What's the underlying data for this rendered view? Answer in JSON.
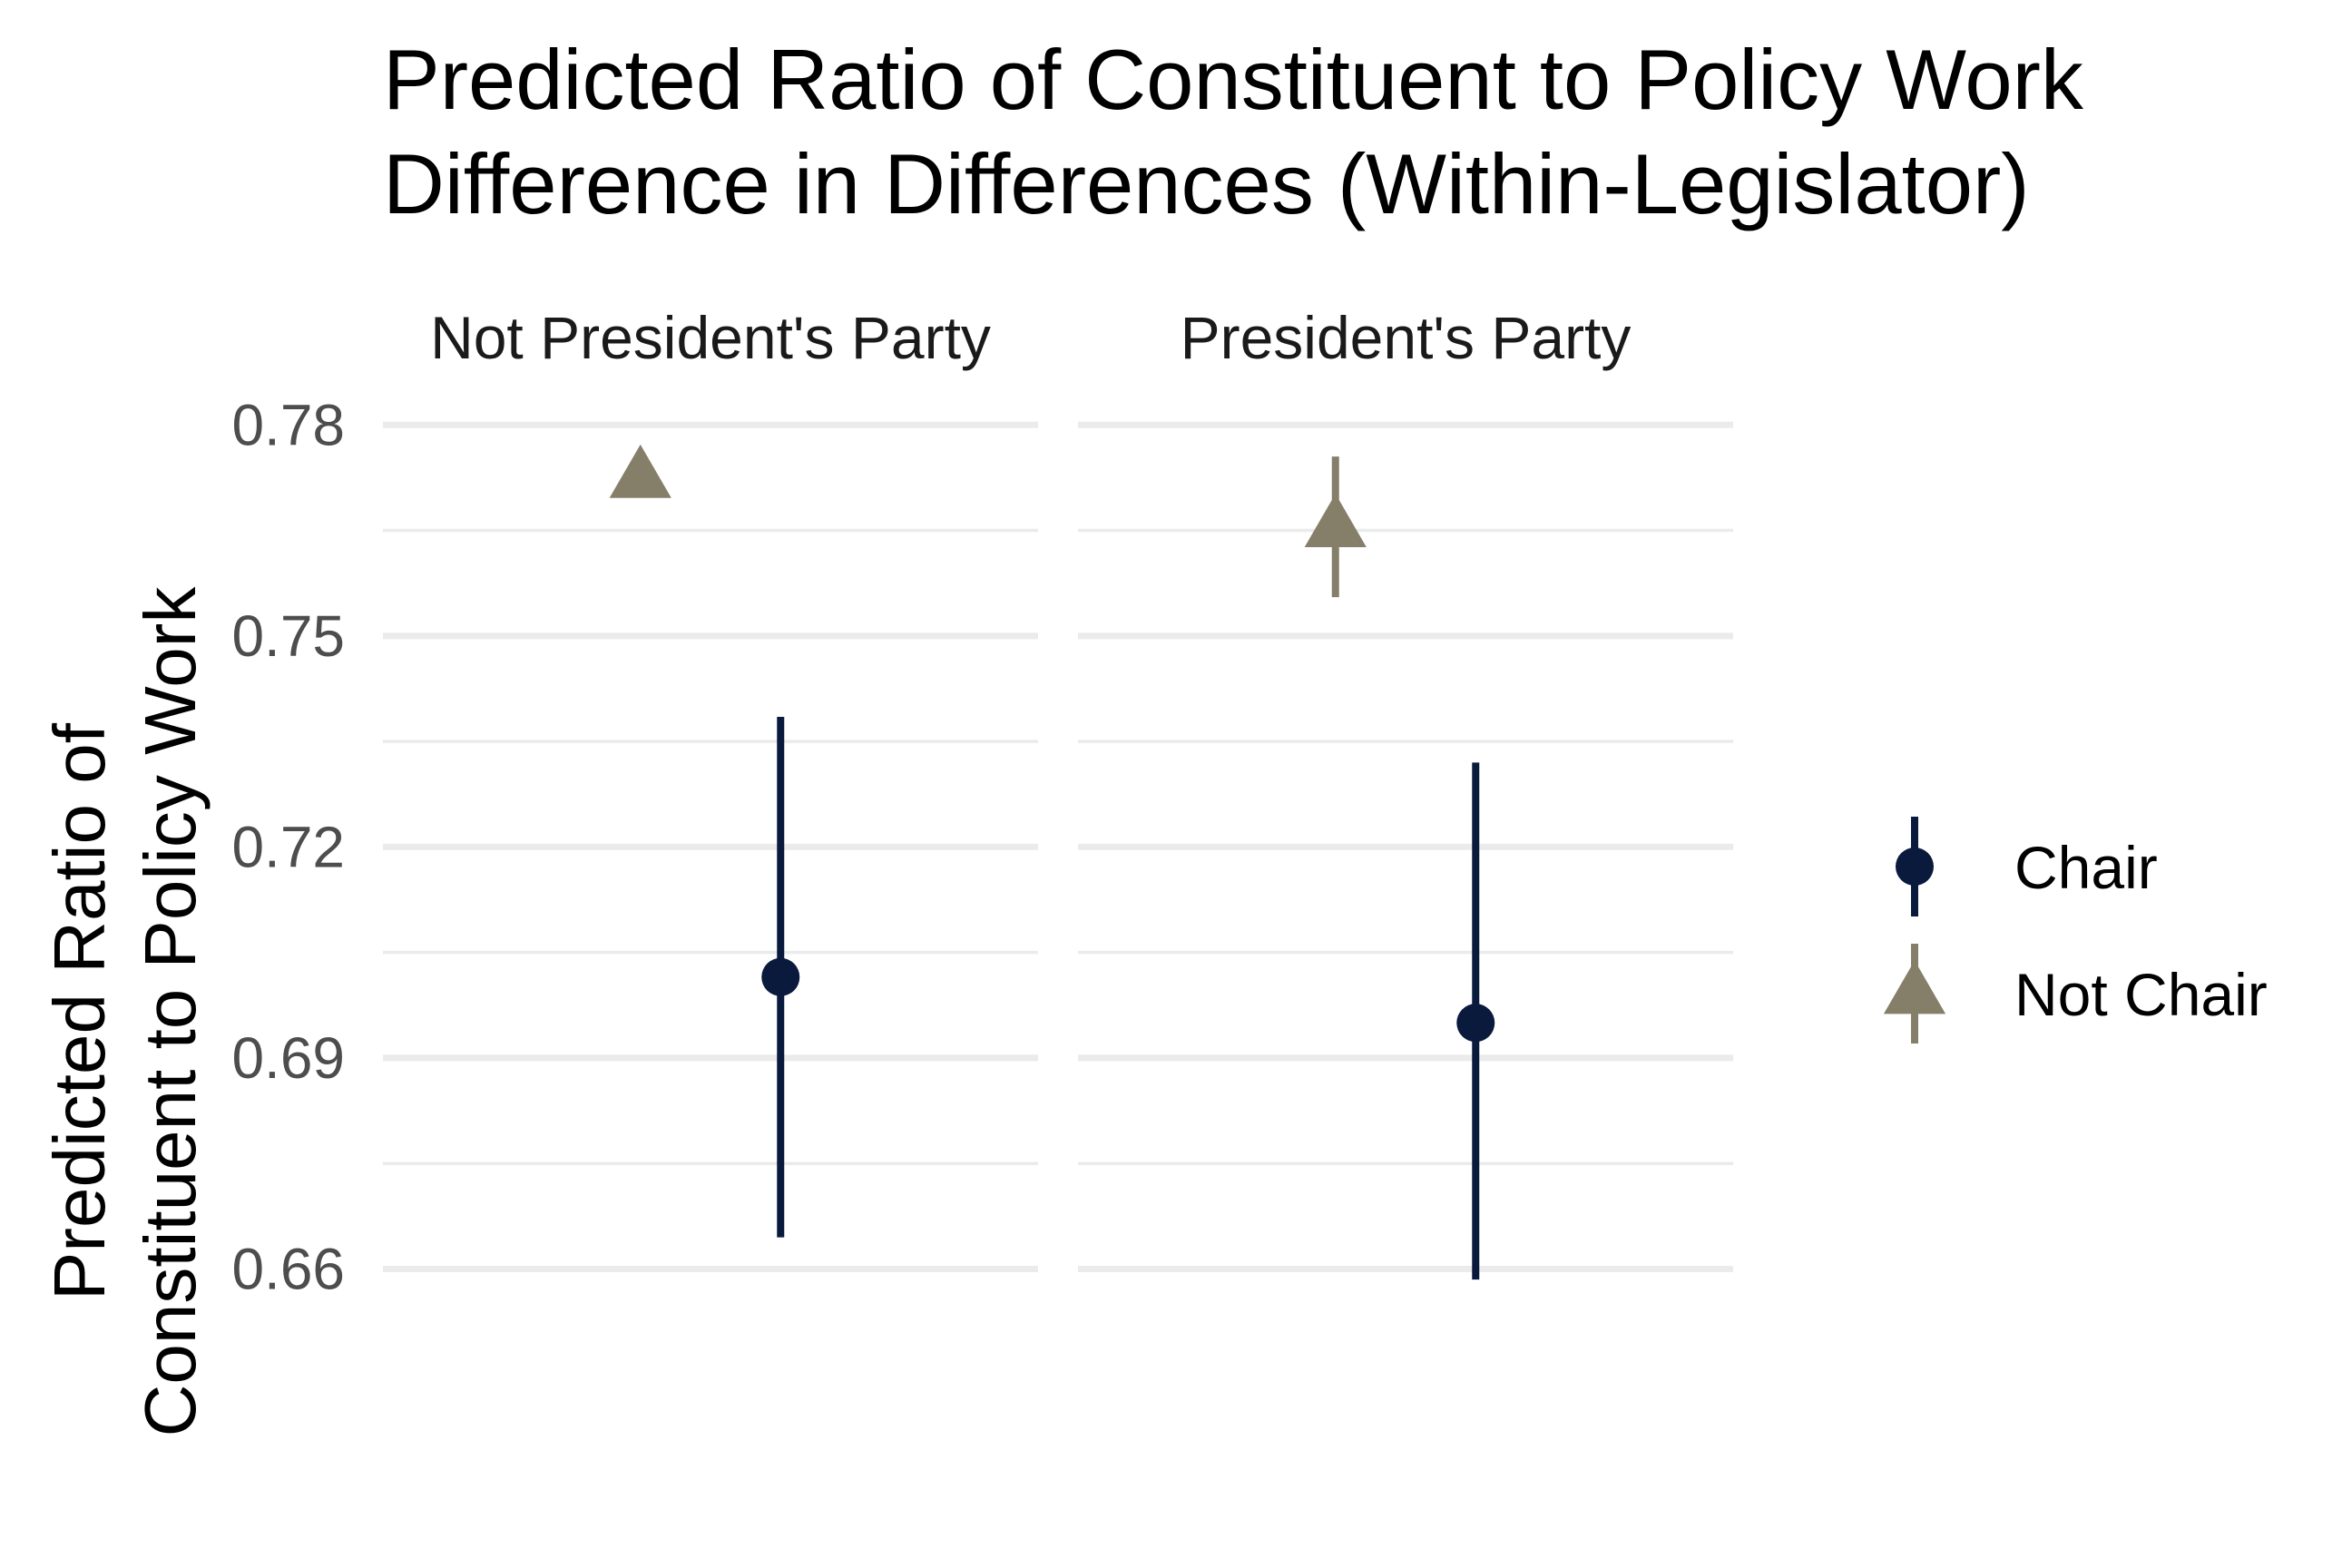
{
  "chart_data": {
    "type": "scatter",
    "title_lines": [
      "Predicted Ratio of Constituent to Policy Work",
      "Difference in Differences (Within-Legislator)"
    ],
    "xlabel": "",
    "ylabel_lines": [
      "Predicted Ratio of",
      "Constituent to Policy Work"
    ],
    "ylim": [
      0.654,
      0.783
    ],
    "yticks": [
      0.66,
      0.69,
      0.72,
      0.75,
      0.78
    ],
    "ytick_labels": [
      "0.66",
      "0.69",
      "0.72",
      "0.75",
      "0.78"
    ],
    "minor_yticks": [
      0.675,
      0.705,
      0.735,
      0.765
    ],
    "grid": true,
    "legend_position": "right",
    "facets": [
      "Not President's Party",
      "President's Party"
    ],
    "series": [
      {
        "name": "Chair",
        "color": "#0a1a3d",
        "shape": "circle",
        "points": [
          {
            "facet": "Not President's Party",
            "y": 0.7015,
            "ymin": 0.6645,
            "ymax": 0.7385
          },
          {
            "facet": "President's Party",
            "y": 0.695,
            "ymin": 0.6585,
            "ymax": 0.732
          }
        ]
      },
      {
        "name": "Not Chair",
        "color": "#857f6a",
        "shape": "triangle",
        "points": [
          {
            "facet": "Not President's Party",
            "y": 0.7725,
            "ymin": 0.772,
            "ymax": 0.773
          },
          {
            "facet": "President's Party",
            "y": 0.7655,
            "ymin": 0.7555,
            "ymax": 0.7755
          }
        ]
      }
    ]
  }
}
